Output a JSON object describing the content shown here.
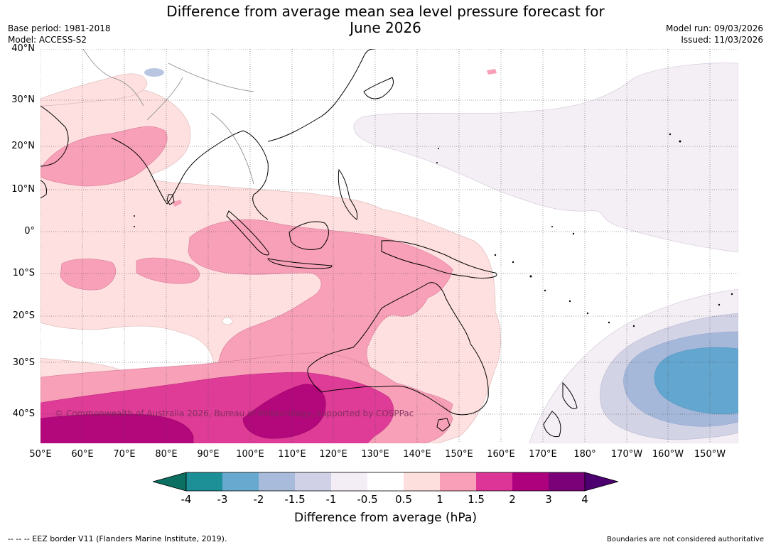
{
  "header": {
    "title_line1": "Difference from average mean sea level pressure forecast for",
    "title_line2": "June 2026",
    "base_period": "Base period: 1981-2018",
    "model": "Model: ACCESS-S2",
    "model_run": "Model run: 09/03/2026",
    "issued": "Issued: 11/03/2026"
  },
  "map": {
    "lat_labels": [
      "40°N",
      "30°N",
      "20°N",
      "10°N",
      "0°",
      "10°S",
      "20°S",
      "30°S",
      "40°S"
    ],
    "lon_labels": [
      "50°E",
      "60°E",
      "70°E",
      "80°E",
      "90°E",
      "100°E",
      "110°E",
      "120°E",
      "130°E",
      "140°E",
      "150°E",
      "160°E",
      "170°E",
      "180°",
      "170°W",
      "160°W",
      "150°W"
    ],
    "watermark": "© Commonwealth of Australia 2026, Bureau of Meteorology, supported by COSPPac",
    "colors": {
      "pos_0_5_1": "#fde0df",
      "pos_1_1_5": "#f8a0b8",
      "pos_1_5_2": "#df3c97",
      "pos_2_3": "#b3077c",
      "pos_3_4": "#7a0273",
      "neg_0_5": "#f4eef5",
      "neg_1": "#d3d3e6",
      "neg_1_5": "#a6b8da",
      "neg_2": "#63a6cf",
      "neg_3": "#1e8f97",
      "neg_4": "#0a6f5e"
    }
  },
  "colorbar": {
    "ticks": [
      "-4",
      "-3",
      "-2",
      "-1.5",
      "-1",
      "-0.5",
      "0.5",
      "1",
      "1.5",
      "2",
      "3",
      "4"
    ],
    "colors": [
      "#0b6f62",
      "#1d9097",
      "#67a9cf",
      "#a8bbdb",
      "#d0d1e6",
      "#f3edf5",
      "#ffffff",
      "#fde0dd",
      "#f9a0b8",
      "#dd3497",
      "#ae017e",
      "#7a0177",
      "#4d0070"
    ],
    "title": "Difference from average (hPa)"
  },
  "footer": {
    "eez_note": "--  --  -- EEZ border V11 (Flanders Marine Institute, 2019).",
    "boundaries_note": "Boundaries are not considered authoritative"
  }
}
